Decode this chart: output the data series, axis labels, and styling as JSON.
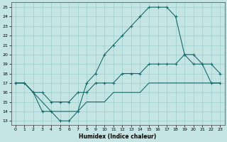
{
  "xlabel": "Humidex (Indice chaleur)",
  "bg_color": "#c5e5e5",
  "grid_color": "#9ecece",
  "line_color": "#1a6b6b",
  "xlim": [
    -0.5,
    23.5
  ],
  "ylim": [
    12.6,
    25.5
  ],
  "yticks": [
    13,
    14,
    15,
    16,
    17,
    18,
    19,
    20,
    21,
    22,
    23,
    24,
    25
  ],
  "xticks": [
    0,
    1,
    2,
    3,
    4,
    5,
    6,
    7,
    8,
    9,
    10,
    11,
    12,
    13,
    14,
    15,
    16,
    17,
    18,
    19,
    20,
    21,
    22,
    23
  ],
  "line1_x": [
    0,
    1,
    2,
    3,
    4,
    5,
    6,
    7,
    8,
    9,
    10,
    11,
    12,
    13,
    14,
    15,
    16,
    17,
    18,
    19,
    20,
    21,
    22,
    23
  ],
  "line1_y": [
    17,
    17,
    16,
    14,
    14,
    13,
    13,
    14,
    17,
    18,
    20,
    21,
    22,
    23,
    24,
    25,
    25,
    25,
    24,
    20,
    20,
    19,
    19,
    18
  ],
  "line2_x": [
    0,
    1,
    2,
    3,
    4,
    5,
    6,
    7,
    8,
    9,
    10,
    11,
    12,
    13,
    14,
    15,
    16,
    17,
    18,
    19,
    20,
    21,
    22,
    23
  ],
  "line2_y": [
    17,
    17,
    16,
    16,
    15,
    15,
    15,
    16,
    16,
    17,
    17,
    17,
    18,
    18,
    18,
    19,
    19,
    19,
    19,
    20,
    19,
    19,
    17,
    17
  ],
  "line3_x": [
    0,
    1,
    2,
    3,
    4,
    5,
    6,
    7,
    8,
    9,
    10,
    11,
    12,
    13,
    14,
    15,
    16,
    17,
    18,
    19,
    20,
    21,
    22,
    23
  ],
  "line3_y": [
    17,
    17,
    16,
    15,
    14,
    14,
    14,
    14,
    15,
    15,
    15,
    16,
    16,
    16,
    16,
    17,
    17,
    17,
    17,
    17,
    17,
    17,
    17,
    17
  ]
}
